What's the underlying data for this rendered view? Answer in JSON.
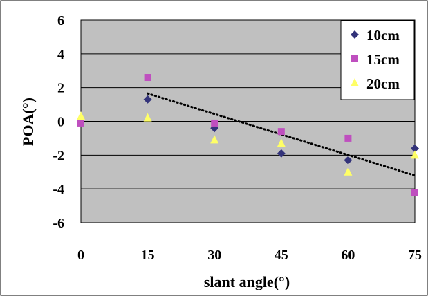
{
  "chart_data": {
    "type": "scatter",
    "title": "",
    "xlabel": "slant angle(°)",
    "ylabel": "POA(°)",
    "xlim": [
      0,
      75
    ],
    "ylim": [
      -6,
      6
    ],
    "x_ticks": [
      0,
      15,
      30,
      45,
      60,
      75
    ],
    "y_ticks": [
      6,
      4,
      2,
      0,
      -2,
      -4,
      -6
    ],
    "y_tick_labels": [
      "6",
      "4",
      "2",
      "0",
      "-2",
      "-4",
      "-6"
    ],
    "grid": "horizontal",
    "plot_background": "#c0c0c0",
    "legend_position": "top-right",
    "series": [
      {
        "name": "10cm",
        "marker": "diamond",
        "color": "#33337a",
        "x": [
          15,
          30,
          45,
          60,
          75
        ],
        "y": [
          1.3,
          -0.4,
          -1.9,
          -2.3,
          -1.6
        ]
      },
      {
        "name": "15cm",
        "marker": "square",
        "color": "#bf4fbf",
        "x": [
          0,
          15,
          30,
          45,
          60,
          75
        ],
        "y": [
          -0.1,
          2.6,
          -0.1,
          -0.6,
          -1.0,
          -4.2
        ]
      },
      {
        "name": "20cm",
        "marker": "triangle",
        "color": "#ffff66",
        "x": [
          0,
          15,
          30,
          45,
          60,
          75
        ],
        "y": [
          0.3,
          0.2,
          -1.1,
          -1.3,
          -3.0,
          -2.0
        ]
      }
    ],
    "trendline": {
      "style": "dotted",
      "color": "#000000",
      "x": [
        15,
        75
      ],
      "y": [
        1.65,
        -3.2
      ]
    }
  }
}
